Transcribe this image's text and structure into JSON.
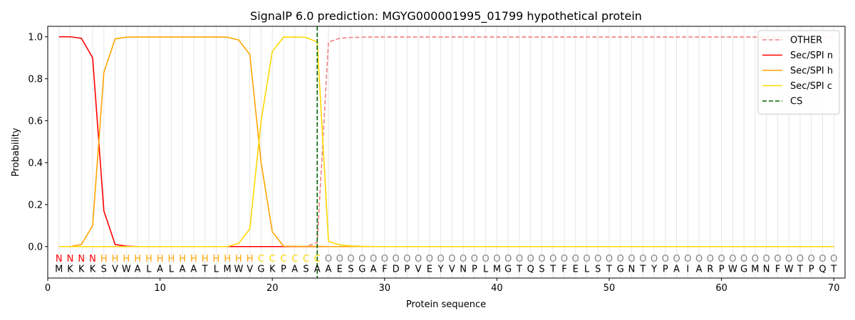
{
  "chart_data": {
    "type": "line",
    "title": "SignalP 6.0 prediction: MGYG000001995_01799 hypothetical protein",
    "xlabel": "Protein sequence",
    "ylabel": "Probability",
    "xlim": [
      0,
      71
    ],
    "ylim": [
      -0.15,
      1.05
    ],
    "xticks": [
      0,
      10,
      20,
      30,
      40,
      50,
      60,
      70
    ],
    "yticks": [
      0.0,
      0.2,
      0.4,
      0.6,
      0.8,
      1.0
    ],
    "ytick_labels": [
      "0.0",
      "0.2",
      "0.4",
      "0.6",
      "0.8",
      "1.0"
    ],
    "grid": "vertical lines at each residue",
    "legend_position": "top-right",
    "sequence": [
      "M",
      "K",
      "K",
      "K",
      "S",
      "V",
      "W",
      "A",
      "L",
      "A",
      "L",
      "A",
      "A",
      "T",
      "L",
      "M",
      "W",
      "V",
      "G",
      "K",
      "P",
      "A",
      "S",
      "A",
      "A",
      "E",
      "S",
      "G",
      "A",
      "F",
      "D",
      "P",
      "V",
      "E",
      "Y",
      "V",
      "N",
      "P",
      "L",
      "M",
      "G",
      "T",
      "Q",
      "S",
      "T",
      "F",
      "E",
      "L",
      "S",
      "T",
      "G",
      "N",
      "T",
      "Y",
      "P",
      "A",
      "I",
      "A",
      "R",
      "P",
      "W",
      "G",
      "M",
      "N",
      "F",
      "W",
      "T",
      "P",
      "Q",
      "T"
    ],
    "labels": [
      "N",
      "N",
      "N",
      "N",
      "H",
      "H",
      "H",
      "H",
      "H",
      "H",
      "H",
      "H",
      "H",
      "H",
      "H",
      "H",
      "H",
      "H",
      "C",
      "C",
      "C",
      "C",
      "C",
      "C",
      "O",
      "O",
      "O",
      "O",
      "O",
      "O",
      "O",
      "O",
      "O",
      "O",
      "O",
      "O",
      "O",
      "O",
      "O",
      "O",
      "O",
      "O",
      "O",
      "O",
      "O",
      "O",
      "O",
      "O",
      "O",
      "O",
      "O",
      "O",
      "O",
      "O",
      "O",
      "O",
      "O",
      "O",
      "O",
      "O",
      "O",
      "O",
      "O",
      "O",
      "O",
      "O",
      "O",
      "O",
      "O",
      "O"
    ],
    "label_colors": {
      "N": "#ff0000",
      "H": "#ffa500",
      "C": "#ffd700",
      "O": "#808080"
    },
    "cleavage_site": 24,
    "series": [
      {
        "name": "OTHER",
        "color": "#f08080",
        "style": "dashed",
        "values": [
          0,
          0,
          0,
          0,
          0,
          0,
          0,
          0,
          0,
          0,
          0,
          0,
          0,
          0,
          0,
          0,
          0,
          0,
          0,
          0,
          0,
          0,
          0,
          0.02,
          0.975,
          0.993,
          0.997,
          0.998,
          0.999,
          0.999,
          0.999,
          0.999,
          0.999,
          0.999,
          0.999,
          0.999,
          0.999,
          0.999,
          0.999,
          0.999,
          0.999,
          0.999,
          0.999,
          0.999,
          0.999,
          0.999,
          0.999,
          0.999,
          0.999,
          0.999,
          0.999,
          0.999,
          0.999,
          0.999,
          0.999,
          0.999,
          0.999,
          0.999,
          0.999,
          0.999,
          0.999,
          0.999,
          0.999,
          0.999,
          0.999,
          0.999,
          0.999,
          0.999,
          0.999,
          0.999
        ]
      },
      {
        "name": "Sec/SPI n",
        "color": "#ff0000",
        "style": "solid",
        "values": [
          1.0,
          1.0,
          0.993,
          0.9,
          0.17,
          0.01,
          0.002,
          0,
          0,
          0,
          0,
          0,
          0,
          0,
          0,
          0,
          0,
          0,
          0,
          0,
          0,
          0,
          0,
          0,
          0,
          0,
          0,
          0,
          0,
          0,
          0,
          0,
          0,
          0,
          0,
          0,
          0,
          0,
          0,
          0,
          0,
          0,
          0,
          0,
          0,
          0,
          0,
          0,
          0,
          0,
          0,
          0,
          0,
          0,
          0,
          0,
          0,
          0,
          0,
          0,
          0,
          0,
          0,
          0,
          0,
          0,
          0,
          0,
          0,
          0
        ]
      },
      {
        "name": "Sec/SPI h",
        "color": "#ffa500",
        "style": "solid",
        "values": [
          0,
          0,
          0.01,
          0.1,
          0.83,
          0.99,
          0.998,
          0.999,
          0.999,
          0.999,
          0.999,
          0.999,
          0.999,
          0.999,
          0.999,
          0.998,
          0.985,
          0.915,
          0.4,
          0.07,
          0.002,
          0.001,
          0.001,
          0.001,
          0,
          0,
          0,
          0,
          0,
          0,
          0,
          0,
          0,
          0,
          0,
          0,
          0,
          0,
          0,
          0,
          0,
          0,
          0,
          0,
          0,
          0,
          0,
          0,
          0,
          0,
          0,
          0,
          0,
          0,
          0,
          0,
          0,
          0,
          0,
          0,
          0,
          0,
          0,
          0,
          0,
          0,
          0,
          0,
          0,
          0
        ]
      },
      {
        "name": "Sec/SPI c",
        "color": "#ffd700",
        "style": "solid",
        "values": [
          0,
          0,
          0,
          0,
          0,
          0,
          0,
          0,
          0,
          0,
          0,
          0,
          0,
          0,
          0,
          0,
          0.015,
          0.085,
          0.6,
          0.93,
          0.998,
          0.999,
          0.997,
          0.975,
          0.025,
          0.008,
          0.003,
          0.001,
          0,
          0,
          0,
          0,
          0,
          0,
          0,
          0,
          0,
          0,
          0,
          0,
          0,
          0,
          0,
          0,
          0,
          0,
          0,
          0,
          0,
          0,
          0,
          0,
          0,
          0,
          0,
          0,
          0,
          0,
          0,
          0,
          0,
          0,
          0,
          0,
          0,
          0,
          0,
          0,
          0,
          0
        ]
      },
      {
        "name": "CS",
        "color": "#006400",
        "style": "dashed",
        "x": 24
      }
    ]
  }
}
